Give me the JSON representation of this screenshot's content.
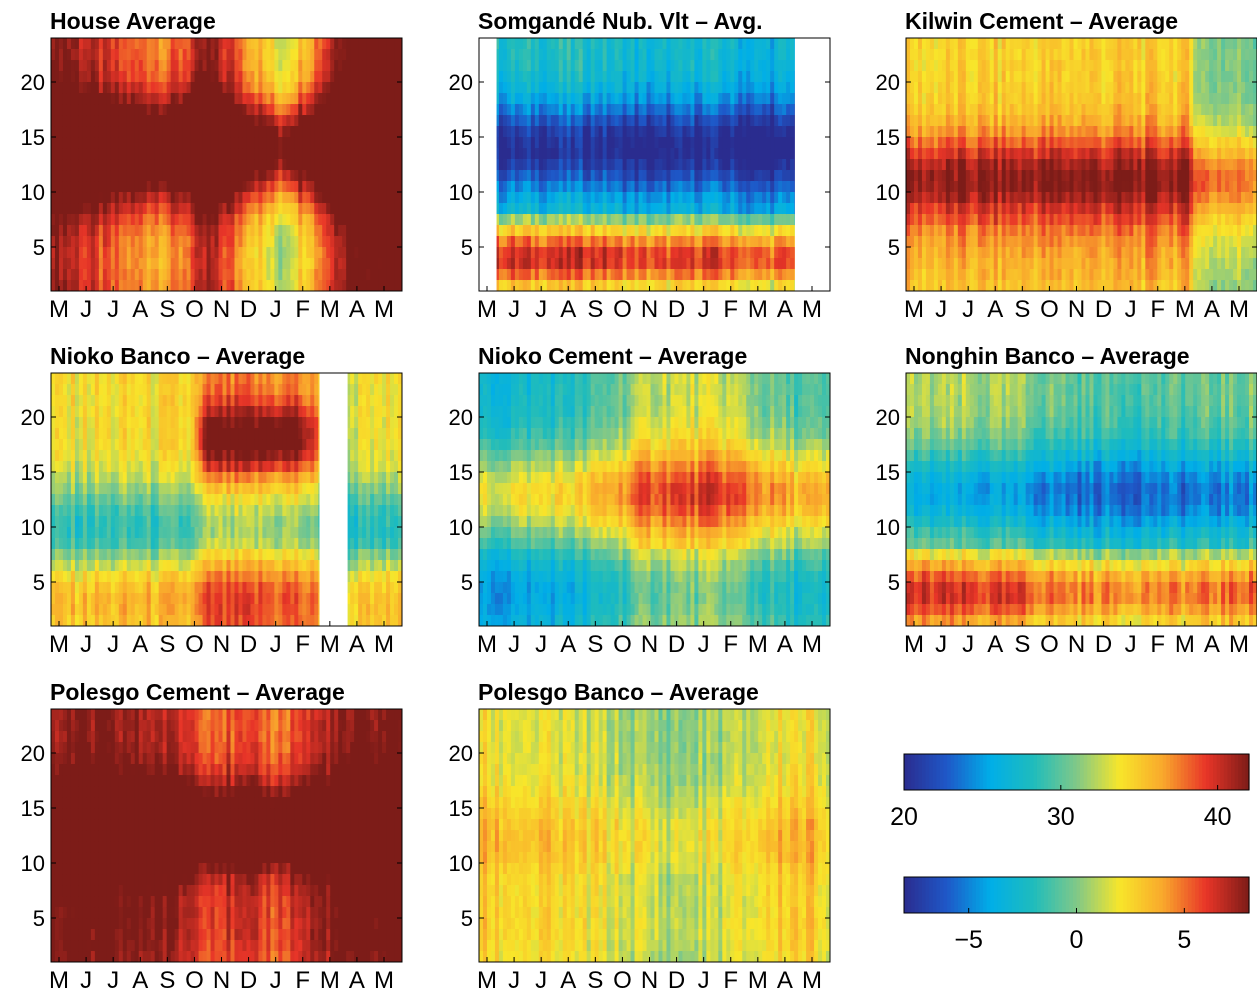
{
  "chart_data": {
    "type": "heatmap",
    "x_tick_labels": [
      "M",
      "J",
      "J",
      "A",
      "S",
      "O",
      "N",
      "D",
      "J",
      "F",
      "M",
      "A",
      "M"
    ],
    "y_ticks": [
      5,
      10,
      15,
      20
    ],
    "ylim": [
      1,
      24
    ],
    "panels": [
      {
        "title": "House Average",
        "pattern": {
          "base": 0.25,
          "day_peak": 0.45,
          "day_center": 14,
          "night_dip": -0.05,
          "seasonal": [
            [
              0.0,
              0.6
            ],
            [
              0.1,
              0.35
            ],
            [
              0.2,
              0.15
            ],
            [
              0.35,
              0.1
            ],
            [
              0.45,
              0.45
            ],
            [
              0.55,
              0.1
            ],
            [
              0.65,
              -0.35
            ],
            [
              0.75,
              0.1
            ],
            [
              0.85,
              0.7
            ],
            [
              1.0,
              0.75
            ]
          ]
        }
      },
      {
        "title": "Somgandé Nub. Vlt – Avg.",
        "pattern": {
          "base": -0.15,
          "day_peak": -0.35,
          "day_center": 14,
          "night_dip": 0.55,
          "seasonal": [
            [
              0,
              0.0
            ],
            [
              0.3,
              0.05
            ],
            [
              0.5,
              -0.1
            ],
            [
              0.65,
              0.0
            ],
            [
              0.8,
              -0.15
            ],
            [
              1,
              0.0
            ]
          ]
        },
        "gaps": [
          [
            0,
            0.05
          ],
          [
            0.9,
            1.0
          ]
        ]
      },
      {
        "title": "Kilwin Cement – Average",
        "pattern": {
          "base": 0.15,
          "day_peak": 0.32,
          "day_center": 11,
          "night_dip": 0.05,
          "seasonal": [
            [
              0,
              0.0
            ],
            [
              0.5,
              0.05
            ],
            [
              0.8,
              0.05
            ],
            [
              0.85,
              -0.3
            ],
            [
              1.0,
              -0.3
            ]
          ]
        }
      },
      {
        "title": "Nioko Banco – Average",
        "pattern": {
          "base": 0.15,
          "day_peak": -0.25,
          "day_center": 10,
          "night_dip": 0.1,
          "upper_bump": 0.3,
          "seasonal": [
            [
              0,
              -0.05
            ],
            [
              0.4,
              0.0
            ],
            [
              0.45,
              0.25
            ],
            [
              0.7,
              0.25
            ],
            [
              0.85,
              -0.1
            ],
            [
              1.0,
              -0.05
            ]
          ]
        },
        "gaps": [
          [
            0.765,
            0.845
          ]
        ]
      },
      {
        "title": "Nioko Cement – Average",
        "pattern": {
          "base": -0.1,
          "day_peak": 0.3,
          "day_center": 13,
          "night_dip": -0.1,
          "seasonal": [
            [
              0,
              -0.2
            ],
            [
              0.3,
              -0.05
            ],
            [
              0.5,
              0.35
            ],
            [
              0.7,
              0.35
            ],
            [
              0.85,
              0.1
            ],
            [
              1.0,
              0.0
            ]
          ]
        }
      },
      {
        "title": "Nonghin Banco – Average",
        "pattern": {
          "base": 0.05,
          "day_peak": -0.3,
          "day_center": 13,
          "night_dip": 0.35,
          "seasonal": [
            [
              0,
              0.0
            ],
            [
              0.3,
              -0.05
            ],
            [
              0.5,
              -0.2
            ],
            [
              0.8,
              -0.2
            ],
            [
              1.0,
              -0.1
            ]
          ]
        }
      },
      {
        "title": "Polesgo Cement – Average",
        "pattern": {
          "base": 0.35,
          "day_peak": 0.35,
          "day_center": 13,
          "night_dip": 0.05,
          "seasonal": [
            [
              0,
              0.25
            ],
            [
              0.3,
              0.2
            ],
            [
              0.45,
              0.0
            ],
            [
              0.65,
              -0.1
            ],
            [
              0.8,
              0.2
            ],
            [
              1.0,
              0.35
            ]
          ]
        }
      },
      {
        "title": "Polesgo Banco – Average",
        "pattern": {
          "base": 0.05,
          "day_peak": 0.1,
          "day_center": 12,
          "night_dip": 0.05,
          "seasonal": [
            [
              0,
              0.15
            ],
            [
              0.3,
              0.05
            ],
            [
              0.55,
              -0.1
            ],
            [
              0.75,
              0.0
            ],
            [
              0.9,
              0.2
            ],
            [
              1.0,
              0.1
            ]
          ]
        }
      }
    ],
    "colorbars": [
      {
        "range": [
          20,
          42
        ],
        "ticks": [
          20,
          30,
          40
        ],
        "tick_labels": [
          "20",
          "30",
          "40"
        ]
      },
      {
        "range": [
          -8,
          8
        ],
        "ticks": [
          -5,
          0,
          5
        ],
        "tick_labels": [
          "−5",
          "0",
          "5"
        ]
      }
    ],
    "colormap": [
      "#2a2c8f",
      "#1e58c8",
      "#00aee8",
      "#1fbcbc",
      "#80c888",
      "#f8e62a",
      "#f9a82c",
      "#e83528",
      "#7d1c18"
    ]
  }
}
